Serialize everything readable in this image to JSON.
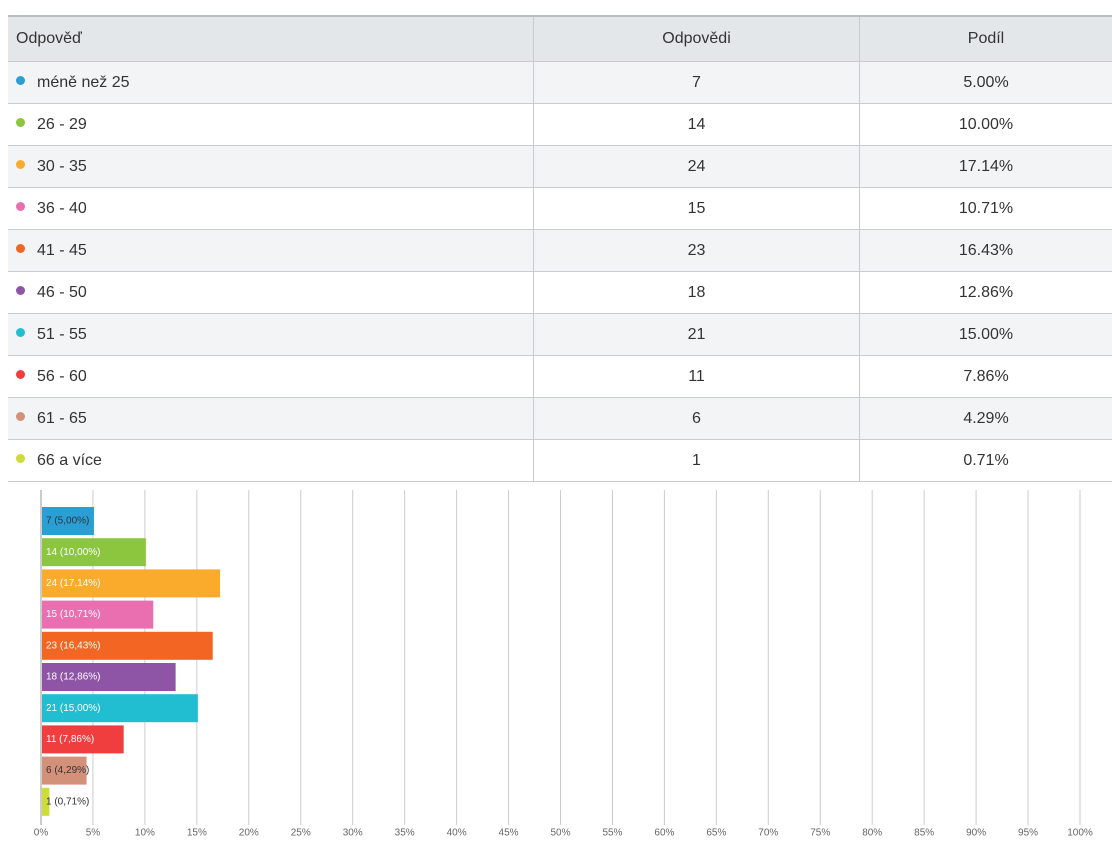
{
  "table": {
    "header": [
      "Odpověď",
      "Odpovědi",
      "Podíl"
    ],
    "rows": [
      [
        "méně než 25",
        "7",
        "5.00%"
      ],
      [
        "26 - 29",
        "14",
        "10.00%"
      ],
      [
        "30 - 35",
        "24",
        "17.14%"
      ],
      [
        "36 - 40",
        "15",
        "10.71%"
      ],
      [
        "41 - 45",
        "23",
        "16.43%"
      ],
      [
        "46 - 50",
        "18",
        "12.86%"
      ],
      [
        "51 - 55",
        "21",
        "15.00%"
      ],
      [
        "56 - 60",
        "11",
        "7.86%"
      ],
      [
        "61 - 65",
        "6",
        "4.29%"
      ],
      [
        "66 a více",
        "1",
        "0.71%"
      ]
    ]
  },
  "chart_data": {
    "type": "bar",
    "orientation": "horizontal",
    "values": [
      5.0,
      10.0,
      17.14,
      10.71,
      16.43,
      12.86,
      15.0,
      7.86,
      4.29,
      0.71
    ],
    "value_labels": [
      "7 (5,00%)",
      "14 (10,00%)",
      "24 (17,14%)",
      "15 (10,71%)",
      "23 (16,43%)",
      "18 (12,86%)",
      "21 (15,00%)",
      "11 (7,86%)",
      "6 (4,29%)",
      "1 (0,71%)"
    ],
    "colors": [
      "#2a9fd6",
      "#8cc63f",
      "#fbab2c",
      "#e96fb0",
      "#f26522",
      "#8e54a5",
      "#21bdd0",
      "#f03e3e",
      "#d4917a",
      "#cddc39"
    ],
    "xlim": [
      0,
      100
    ],
    "xticks": [
      {
        "value": 0,
        "label": "0%"
      },
      {
        "value": 5,
        "label": "5%"
      },
      {
        "value": 10,
        "label": "10%"
      },
      {
        "value": 15,
        "label": "15%"
      },
      {
        "value": 20,
        "label": "20%"
      },
      {
        "value": 25,
        "label": "25%"
      },
      {
        "value": 30,
        "label": "30%"
      },
      {
        "value": 35,
        "label": "35%"
      },
      {
        "value": 40,
        "label": "40%"
      },
      {
        "value": 45,
        "label": "45%"
      },
      {
        "value": 50,
        "label": "50%"
      },
      {
        "value": 55,
        "label": "55%"
      },
      {
        "value": 60,
        "label": "60%"
      },
      {
        "value": 65,
        "label": "65%"
      },
      {
        "value": 70,
        "label": "70%"
      },
      {
        "value": 75,
        "label": "75%"
      },
      {
        "value": 80,
        "label": "80%"
      },
      {
        "value": 85,
        "label": "85%"
      },
      {
        "value": 90,
        "label": "90%"
      },
      {
        "value": 95,
        "label": "95%"
      },
      {
        "value": 100,
        "label": "100%"
      }
    ],
    "grid": true
  }
}
